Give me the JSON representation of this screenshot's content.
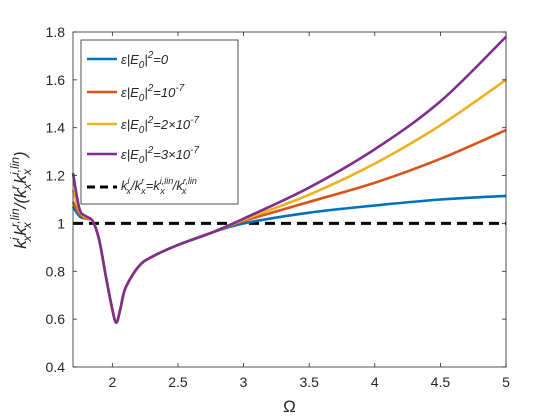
{
  "chart_data": {
    "type": "line",
    "xlabel": "Ω",
    "ylabel": "k_x^i k_x^{r,lin} / (k_x^r k_x^{i,lin})",
    "xlim": [
      1.7,
      5
    ],
    "ylim": [
      0.4,
      1.8
    ],
    "xticks": [
      "2",
      "2.5",
      "3",
      "3.5",
      "4",
      "4.5",
      "5"
    ],
    "yticks": [
      "0.4",
      "0.6",
      "0.8",
      "1",
      "1.2",
      "1.4",
      "1.6",
      "1.8"
    ],
    "grid": false,
    "legend_position": "top-left",
    "series": [
      {
        "name": "ε|E0|^2=0",
        "color": "#0072BD",
        "x": [
          1.7,
          1.75,
          1.8,
          1.85,
          1.9,
          1.95,
          2.0,
          2.03,
          2.06,
          2.1,
          2.2,
          2.3,
          2.5,
          2.75,
          3.0,
          3.5,
          4.0,
          4.5,
          5.0
        ],
        "y": [
          1.07,
          1.03,
          1.02,
          1.01,
          0.93,
          0.78,
          0.64,
          0.585,
          0.64,
          0.73,
          0.82,
          0.86,
          0.91,
          0.96,
          1.0,
          1.045,
          1.075,
          1.1,
          1.115
        ]
      },
      {
        "name": "ε|E0|^2=10^-7",
        "color": "#D95319",
        "x": [
          1.7,
          1.75,
          1.8,
          1.85,
          1.9,
          1.95,
          2.0,
          2.03,
          2.06,
          2.1,
          2.2,
          2.3,
          2.5,
          2.75,
          3.0,
          3.5,
          4.0,
          4.5,
          5.0
        ],
        "y": [
          1.09,
          1.04,
          1.02,
          1.01,
          0.93,
          0.78,
          0.64,
          0.585,
          0.64,
          0.73,
          0.82,
          0.86,
          0.91,
          0.96,
          1.01,
          1.09,
          1.17,
          1.27,
          1.39
        ]
      },
      {
        "name": "ε|E0|^2=2×10^-7",
        "color": "#EDB120",
        "x": [
          1.7,
          1.75,
          1.8,
          1.85,
          1.9,
          1.95,
          2.0,
          2.03,
          2.06,
          2.1,
          2.2,
          2.3,
          2.5,
          2.75,
          3.0,
          3.5,
          4.0,
          4.5,
          5.0
        ],
        "y": [
          1.14,
          1.05,
          1.025,
          1.01,
          0.93,
          0.78,
          0.64,
          0.585,
          0.64,
          0.73,
          0.82,
          0.86,
          0.91,
          0.96,
          1.015,
          1.12,
          1.25,
          1.41,
          1.6
        ]
      },
      {
        "name": "ε|E0|^2=3×10^-7",
        "color": "#7E2F8E",
        "x": [
          1.7,
          1.75,
          1.8,
          1.85,
          1.9,
          1.95,
          2.0,
          2.03,
          2.06,
          2.1,
          2.2,
          2.3,
          2.5,
          2.75,
          3.0,
          3.5,
          4.0,
          4.5,
          5.0
        ],
        "y": [
          1.21,
          1.06,
          1.03,
          1.01,
          0.93,
          0.78,
          0.64,
          0.585,
          0.64,
          0.73,
          0.82,
          0.86,
          0.91,
          0.96,
          1.02,
          1.15,
          1.31,
          1.51,
          1.78
        ]
      },
      {
        "name": "k_x^i/k_x^r=k_x^{i,lin}/k_x^{r,lin}",
        "color": "#000000",
        "dashed": true,
        "x": [
          1.7,
          5.0
        ],
        "y": [
          1.0,
          1.0
        ]
      }
    ]
  },
  "legend": {
    "items": [
      {
        "prefix": "ε|E",
        "sub": "0",
        "mid": "|",
        "sup": "2",
        "suffix": "=0"
      },
      {
        "prefix": "ε|E",
        "sub": "0",
        "mid": "|",
        "sup": "2",
        "suffix": "=10",
        "sup2": "-7"
      },
      {
        "prefix": "ε|E",
        "sub": "0",
        "mid": "|",
        "sup": "2",
        "suffix": "=2×10",
        "sup2": "-7"
      },
      {
        "prefix": "ε|E",
        "sub": "0",
        "mid": "|",
        "sup": "2",
        "suffix": "=3×10",
        "sup2": "-7"
      }
    ],
    "dashed_item": {
      "a": "k",
      "a_sup": "i",
      "a_sub": "x",
      "b": "/k",
      "b_sup": "r",
      "b_sub": "x",
      "c": "=k",
      "c_sup": "i,lin",
      "c_sub": "x",
      "d": "/k",
      "d_sup": "r,lin",
      "d_sub": "x"
    }
  },
  "ylabel_parts": {
    "k1": "k",
    "k1_sup": "i",
    "k1_sub": "x",
    "k2": "k",
    "k2_sup": "r,lin",
    "k2_sub": "x",
    "mid": "/(k",
    "k3_sup": "r",
    "k3_sub": "x",
    "k4": "k",
    "k4_sup": "i,lin",
    "k4_sub": "x",
    "end": ")"
  }
}
